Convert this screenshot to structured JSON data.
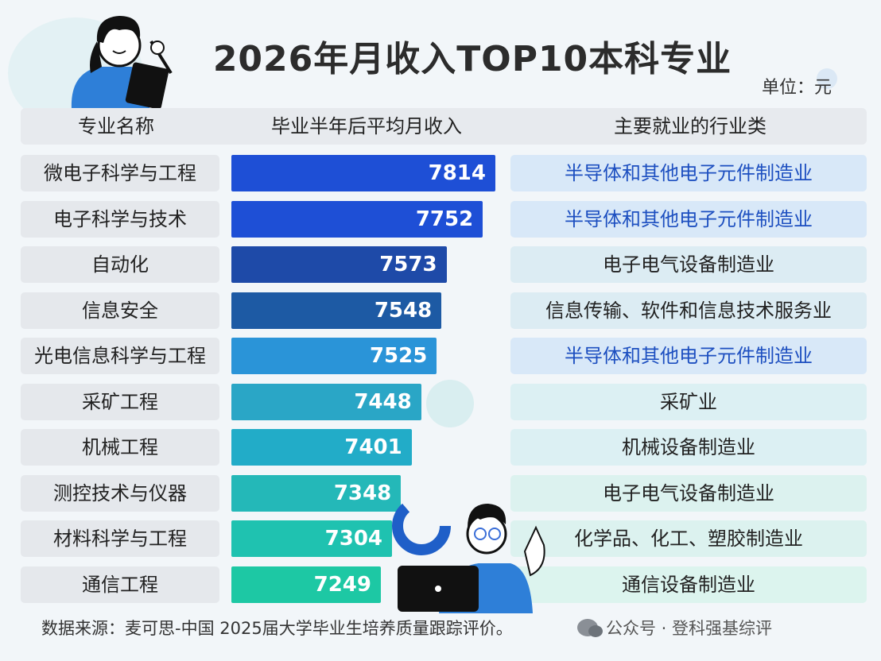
{
  "title": "2026年月收入TOP10本科专业",
  "unit": "单位：元",
  "headers": {
    "major": "专业名称",
    "income": "毕业半年后平均月收入",
    "industry": "主要就业的行业类"
  },
  "chart_data": {
    "type": "bar",
    "orientation": "horizontal",
    "title": "2026年月收入TOP10本科专业",
    "categories": [
      "微电子科学与工程",
      "电子科学与技术",
      "自动化",
      "信息安全",
      "光电信息科学与工程",
      "采矿工程",
      "机械工程",
      "测控技术与仪器",
      "材料科学与工程",
      "通信工程"
    ],
    "values": [
      7814,
      7752,
      7573,
      7548,
      7525,
      7448,
      7401,
      7348,
      7304,
      7249
    ],
    "industries": [
      "半导体和其他电子元件制造业",
      "半导体和其他电子元件制造业",
      "电子电气设备制造业",
      "信息传输、软件和信息技术服务业",
      "半导体和其他电子元件制造业",
      "采矿业",
      "机械设备制造业",
      "电子电气设备制造业",
      "化学品、化工、塑胶制造业",
      "通信设备制造业"
    ],
    "bar_colors": [
      "#1e4fd6",
      "#1e4fd6",
      "#1e4aa8",
      "#1d5aa4",
      "#2a94d8",
      "#2aa6c6",
      "#22acc8",
      "#24b8b8",
      "#1fc2b0",
      "#1dc8a4"
    ],
    "industry_styles": [
      {
        "bg": "#d8e8f8",
        "fg": "#1d4fc0"
      },
      {
        "bg": "#d8e8f8",
        "fg": "#1d4fc0"
      },
      {
        "bg": "#dcecf3",
        "fg": "#222222"
      },
      {
        "bg": "#dcecf3",
        "fg": "#222222"
      },
      {
        "bg": "#d8e8f8",
        "fg": "#1d4fc0"
      },
      {
        "bg": "#dcf0f3",
        "fg": "#222222"
      },
      {
        "bg": "#dcf0f3",
        "fg": "#222222"
      },
      {
        "bg": "#dcf2ef",
        "fg": "#222222"
      },
      {
        "bg": "#dcf2ef",
        "fg": "#222222"
      },
      {
        "bg": "#dcf4ee",
        "fg": "#222222"
      }
    ],
    "xlim": [
      7000,
      7814
    ]
  },
  "footer": "数据来源：麦可思-中国 2025届大学毕业生培养质量跟踪评价。",
  "wechat": "公众号 · 登科强基综评"
}
